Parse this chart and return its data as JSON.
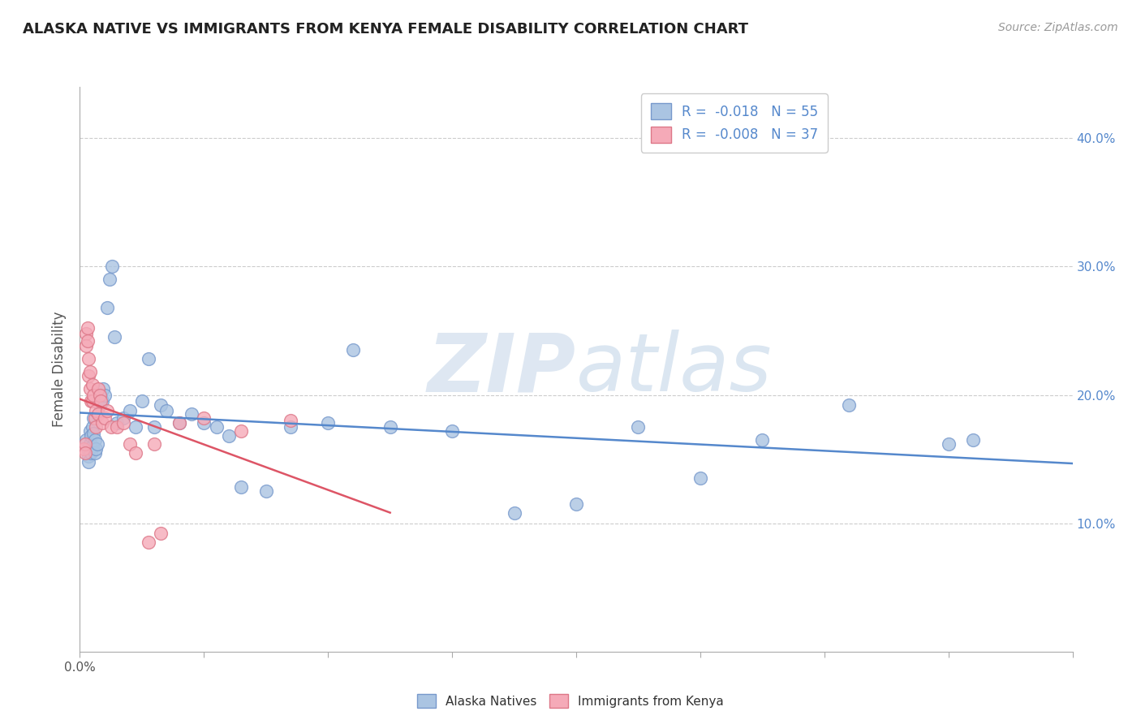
{
  "title": "ALASKA NATIVE VS IMMIGRANTS FROM KENYA FEMALE DISABILITY CORRELATION CHART",
  "source_text": "Source: ZipAtlas.com",
  "ylabel": "Female Disability",
  "xlim": [
    0.0,
    0.8
  ],
  "ylim": [
    0.0,
    0.44
  ],
  "xtick_vals": [
    0.0,
    0.1,
    0.2,
    0.3,
    0.4,
    0.5,
    0.6,
    0.7,
    0.8
  ],
  "xtick_labels_shown": {
    "0.0": "0.0%"
  },
  "ytick_vals": [
    0.1,
    0.2,
    0.3,
    0.4
  ],
  "ytick_labels": [
    "10.0%",
    "20.0%",
    "30.0%",
    "40.0%"
  ],
  "alaska_color": "#aac4e2",
  "kenya_color": "#f5aab8",
  "alaska_edge": "#7799cc",
  "kenya_edge": "#dd7788",
  "trendline_alaska_color": "#5588cc",
  "trendline_kenya_color": "#dd5566",
  "legend_label_alaska": "R =  -0.018   N = 55",
  "legend_label_kenya": "R =  -0.008   N = 37",
  "watermark_zip": "ZIP",
  "watermark_atlas": "atlas",
  "alaska_x": [
    0.005,
    0.006,
    0.007,
    0.007,
    0.008,
    0.008,
    0.009,
    0.009,
    0.01,
    0.01,
    0.011,
    0.011,
    0.012,
    0.012,
    0.013,
    0.014,
    0.015,
    0.016,
    0.017,
    0.018,
    0.019,
    0.02,
    0.022,
    0.024,
    0.026,
    0.028,
    0.03,
    0.035,
    0.04,
    0.045,
    0.05,
    0.055,
    0.06,
    0.065,
    0.07,
    0.08,
    0.09,
    0.1,
    0.11,
    0.12,
    0.13,
    0.15,
    0.17,
    0.2,
    0.22,
    0.25,
    0.3,
    0.35,
    0.4,
    0.45,
    0.5,
    0.55,
    0.62,
    0.7,
    0.72
  ],
  "alaska_y": [
    0.165,
    0.158,
    0.152,
    0.148,
    0.172,
    0.162,
    0.168,
    0.155,
    0.175,
    0.16,
    0.182,
    0.17,
    0.165,
    0.155,
    0.158,
    0.162,
    0.198,
    0.192,
    0.2,
    0.195,
    0.205,
    0.2,
    0.268,
    0.29,
    0.3,
    0.245,
    0.178,
    0.182,
    0.188,
    0.175,
    0.195,
    0.228,
    0.175,
    0.192,
    0.188,
    0.178,
    0.185,
    0.178,
    0.175,
    0.168,
    0.128,
    0.125,
    0.175,
    0.178,
    0.235,
    0.175,
    0.172,
    0.108,
    0.115,
    0.175,
    0.135,
    0.165,
    0.192,
    0.162,
    0.165
  ],
  "kenya_x": [
    0.003,
    0.004,
    0.004,
    0.005,
    0.005,
    0.006,
    0.006,
    0.007,
    0.007,
    0.008,
    0.008,
    0.009,
    0.01,
    0.01,
    0.011,
    0.012,
    0.013,
    0.013,
    0.015,
    0.015,
    0.016,
    0.017,
    0.018,
    0.02,
    0.022,
    0.025,
    0.03,
    0.035,
    0.04,
    0.045,
    0.055,
    0.06,
    0.065,
    0.08,
    0.1,
    0.13,
    0.17
  ],
  "kenya_y": [
    0.158,
    0.162,
    0.155,
    0.248,
    0.238,
    0.252,
    0.242,
    0.215,
    0.228,
    0.205,
    0.218,
    0.195,
    0.208,
    0.195,
    0.2,
    0.182,
    0.188,
    0.175,
    0.205,
    0.185,
    0.2,
    0.195,
    0.178,
    0.182,
    0.188,
    0.175,
    0.175,
    0.178,
    0.162,
    0.155,
    0.085,
    0.162,
    0.092,
    0.178,
    0.182,
    0.172,
    0.18
  ],
  "background_color": "#ffffff",
  "grid_color": "#cccccc",
  "title_color": "#222222",
  "label_color": "#555555",
  "right_axis_color": "#5588cc"
}
